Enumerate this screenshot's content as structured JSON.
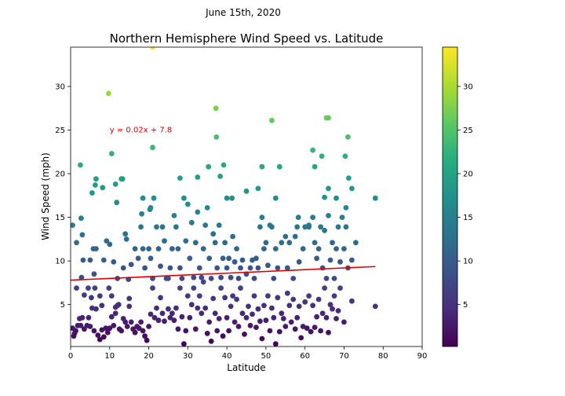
{
  "figure": {
    "suptitle": "June 15th, 2020"
  },
  "chart_data": {
    "type": "scatter",
    "title": "Northern Hemisphere Wind Speed vs. Latitude",
    "xlabel": "Latitude",
    "ylabel": "Wind Speed (mph)",
    "xlim": [
      0,
      90
    ],
    "ylim": [
      0.2,
      34.5
    ],
    "xticks": [
      0,
      10,
      20,
      30,
      40,
      50,
      60,
      70,
      80,
      90
    ],
    "yticks": [
      5,
      10,
      15,
      20,
      25,
      30
    ],
    "colormap": "viridis",
    "colorbar": {
      "range": [
        0.2,
        34.5
      ],
      "ticks": [
        5,
        10,
        15,
        20,
        25,
        30
      ]
    },
    "regression": {
      "slope": 0.02,
      "intercept": 7.8,
      "x_range": [
        0,
        78
      ],
      "color": "#e00000",
      "equation_label": "y = 0.02x + 7.8",
      "label_position": [
        10,
        25
      ]
    },
    "points": [
      [
        0.5,
        14.1
      ],
      [
        1.5,
        12.1
      ],
      [
        2.5,
        21.0
      ],
      [
        2.7,
        14.9
      ],
      [
        3.0,
        13.0
      ],
      [
        3.2,
        10.1
      ],
      [
        5.5,
        17.8
      ],
      [
        6.5,
        19.4
      ],
      [
        6.3,
        18.7
      ],
      [
        8.2,
        18.4
      ],
      [
        9.7,
        29.2
      ],
      [
        10.5,
        22.3
      ],
      [
        11.5,
        18.8
      ],
      [
        11.8,
        16.7
      ],
      [
        13.3,
        19.4
      ],
      [
        13.0,
        19.4
      ],
      [
        18.5,
        17.2
      ],
      [
        20.3,
        15.9
      ],
      [
        20.5,
        16.1
      ],
      [
        21.0,
        23.0
      ],
      [
        21.3,
        17.2
      ],
      [
        21.0,
        34.5
      ],
      [
        28.0,
        19.5
      ],
      [
        32.5,
        19.6
      ],
      [
        35.3,
        20.8
      ],
      [
        37.2,
        27.5
      ],
      [
        37.3,
        24.2
      ],
      [
        38.3,
        19.7
      ],
      [
        39.2,
        21.0
      ],
      [
        40.0,
        17.2
      ],
      [
        41.3,
        17.2
      ],
      [
        45.0,
        18.0
      ],
      [
        48.0,
        18.3
      ],
      [
        49.0,
        20.8
      ],
      [
        51.5,
        26.1
      ],
      [
        52.5,
        17.2
      ],
      [
        53.5,
        20.8
      ],
      [
        58.3,
        15.0
      ],
      [
        61.0,
        14.1
      ],
      [
        62.0,
        22.7
      ],
      [
        62.5,
        20.8
      ],
      [
        64.3,
        22.0
      ],
      [
        65.0,
        17.3
      ],
      [
        65.5,
        26.4
      ],
      [
        66.0,
        26.4
      ],
      [
        66.0,
        18.3
      ],
      [
        68.0,
        17.2
      ],
      [
        70.3,
        22.0
      ],
      [
        70.5,
        16.1
      ],
      [
        71.0,
        24.2
      ],
      [
        71.2,
        19.5
      ],
      [
        72.0,
        18.3
      ],
      [
        78.0,
        17.2
      ],
      [
        1.5,
        6.9
      ],
      [
        2.8,
        8.1
      ],
      [
        3.5,
        6.1
      ],
      [
        4.5,
        6.9
      ],
      [
        5.0,
        10.1
      ],
      [
        5.3,
        5.8
      ],
      [
        5.8,
        11.4
      ],
      [
        6.0,
        8.5
      ],
      [
        6.5,
        11.4
      ],
      [
        6.2,
        6.9
      ],
      [
        7.5,
        6.0
      ],
      [
        8.0,
        4.9
      ],
      [
        8.5,
        10.1
      ],
      [
        9.2,
        12.3
      ],
      [
        9.8,
        6.9
      ],
      [
        10.0,
        11.9
      ],
      [
        10.5,
        6.0
      ],
      [
        11.0,
        9.9
      ],
      [
        11.5,
        4.7
      ],
      [
        12.0,
        8.0
      ],
      [
        12.3,
        5.0
      ],
      [
        13.5,
        9.2
      ],
      [
        14.0,
        13.1
      ],
      [
        14.3,
        12.5
      ],
      [
        14.8,
        7.9
      ],
      [
        15.0,
        5.7
      ],
      [
        15.5,
        9.6
      ],
      [
        16.5,
        11.4
      ],
      [
        17.3,
        10.3
      ],
      [
        18.0,
        13.9
      ],
      [
        18.2,
        15.4
      ],
      [
        18.5,
        11.4
      ],
      [
        19.0,
        9.2
      ],
      [
        20.0,
        11.4
      ],
      [
        20.5,
        10.3
      ],
      [
        21.0,
        8.0
      ],
      [
        22.0,
        13.9
      ],
      [
        22.5,
        11.4
      ],
      [
        23.0,
        9.4
      ],
      [
        23.5,
        13.9
      ],
      [
        24.0,
        12.3
      ],
      [
        25.0,
        8.0
      ],
      [
        25.5,
        9.2
      ],
      [
        26.0,
        11.4
      ],
      [
        26.5,
        15.2
      ],
      [
        27.0,
        13.9
      ],
      [
        27.5,
        11.4
      ],
      [
        28.0,
        9.2
      ],
      [
        28.5,
        8.0
      ],
      [
        29.0,
        17.2
      ],
      [
        29.5,
        12.3
      ],
      [
        30.0,
        16.5
      ],
      [
        30.5,
        10.3
      ],
      [
        31.0,
        14.4
      ],
      [
        31.5,
        8.1
      ],
      [
        32.0,
        12.1
      ],
      [
        32.5,
        15.6
      ],
      [
        33.0,
        9.2
      ],
      [
        33.5,
        8.1
      ],
      [
        34.0,
        11.4
      ],
      [
        34.5,
        14.1
      ],
      [
        35.0,
        16.1
      ],
      [
        35.5,
        10.3
      ],
      [
        36.0,
        8.0
      ],
      [
        36.5,
        13.1
      ],
      [
        37.0,
        12.1
      ],
      [
        37.5,
        9.2
      ],
      [
        38.0,
        14.1
      ],
      [
        38.5,
        8.1
      ],
      [
        39.0,
        10.3
      ],
      [
        39.5,
        12.1
      ],
      [
        40.0,
        9.2
      ],
      [
        40.5,
        10.3
      ],
      [
        41.0,
        8.1
      ],
      [
        41.5,
        12.8
      ],
      [
        42.0,
        9.9
      ],
      [
        42.5,
        11.4
      ],
      [
        43.0,
        8.0
      ],
      [
        43.5,
        9.2
      ],
      [
        44.0,
        10.1
      ],
      [
        45.0,
        8.5
      ],
      [
        46.0,
        9.2
      ],
      [
        46.5,
        10.1
      ],
      [
        47.0,
        8.0
      ],
      [
        47.5,
        10.3
      ],
      [
        48.0,
        9.2
      ],
      [
        48.5,
        13.9
      ],
      [
        49.0,
        15.0
      ],
      [
        49.5,
        11.4
      ],
      [
        50.0,
        12.1
      ],
      [
        50.5,
        9.5
      ],
      [
        51.0,
        14.1
      ],
      [
        51.5,
        13.9
      ],
      [
        52.0,
        8.0
      ],
      [
        52.5,
        11.4
      ],
      [
        53.0,
        9.2
      ],
      [
        54.0,
        12.1
      ],
      [
        55.0,
        12.8
      ],
      [
        55.5,
        9.2
      ],
      [
        56.0,
        12.1
      ],
      [
        57.0,
        8.0
      ],
      [
        57.5,
        12.8
      ],
      [
        58.0,
        13.9
      ],
      [
        58.5,
        9.9
      ],
      [
        59.5,
        11.4
      ],
      [
        60.0,
        13.9
      ],
      [
        61.0,
        13.9
      ],
      [
        62.0,
        15.0
      ],
      [
        62.5,
        12.1
      ],
      [
        63.0,
        10.3
      ],
      [
        63.5,
        11.4
      ],
      [
        64.0,
        13.9
      ],
      [
        64.5,
        9.2
      ],
      [
        65.0,
        13.5
      ],
      [
        65.5,
        8.0
      ],
      [
        66.0,
        15.2
      ],
      [
        66.5,
        10.1
      ],
      [
        67.0,
        12.1
      ],
      [
        67.5,
        8.0
      ],
      [
        68.0,
        11.4
      ],
      [
        68.5,
        13.9
      ],
      [
        69.0,
        9.9
      ],
      [
        69.5,
        15.0
      ],
      [
        70.0,
        11.4
      ],
      [
        70.5,
        13.9
      ],
      [
        71.0,
        9.2
      ],
      [
        72.0,
        10.1
      ],
      [
        73.0,
        12.1
      ],
      [
        0.5,
        2.3
      ],
      [
        0.8,
        1.4
      ],
      [
        1.0,
        1.7
      ],
      [
        1.3,
        2.0
      ],
      [
        1.8,
        2.6
      ],
      [
        2.3,
        3.4
      ],
      [
        2.6,
        2.6
      ],
      [
        3.0,
        3.5
      ],
      [
        3.5,
        2.2
      ],
      [
        4.2,
        2.6
      ],
      [
        4.6,
        3.5
      ],
      [
        5.0,
        2.5
      ],
      [
        5.5,
        4.6
      ],
      [
        6.0,
        2.0
      ],
      [
        6.5,
        4.5
      ],
      [
        7.0,
        1.5
      ],
      [
        7.5,
        1.0
      ],
      [
        8.0,
        2.1
      ],
      [
        8.5,
        1.3
      ],
      [
        9.0,
        2.3
      ],
      [
        9.5,
        1.8
      ],
      [
        10.0,
        2.3
      ],
      [
        10.5,
        3.6
      ],
      [
        11.0,
        2.6
      ],
      [
        11.5,
        4.0
      ],
      [
        12.0,
        4.9
      ],
      [
        12.5,
        2.2
      ],
      [
        13.0,
        2.0
      ],
      [
        13.5,
        3.4
      ],
      [
        14.0,
        3.0
      ],
      [
        14.5,
        2.5
      ],
      [
        15.0,
        4.8
      ],
      [
        15.5,
        3.0
      ],
      [
        16.0,
        2.2
      ],
      [
        16.5,
        1.8
      ],
      [
        17.0,
        2.5
      ],
      [
        17.5,
        2.3
      ],
      [
        18.0,
        3.0
      ],
      [
        18.5,
        2.0
      ],
      [
        19.0,
        1.4
      ],
      [
        19.5,
        0.9
      ],
      [
        20.0,
        2.5
      ],
      [
        20.5,
        3.9
      ],
      [
        21.0,
        6.9
      ],
      [
        21.5,
        3.5
      ],
      [
        22.0,
        4.6
      ],
      [
        22.5,
        3.2
      ],
      [
        23.0,
        5.8
      ],
      [
        23.5,
        4.0
      ],
      [
        24.0,
        3.1
      ],
      [
        24.5,
        8.0
      ],
      [
        25.0,
        4.5
      ],
      [
        25.5,
        3.5
      ],
      [
        26.0,
        4.0
      ],
      [
        26.5,
        3.2
      ],
      [
        27.0,
        4.6
      ],
      [
        27.5,
        2.2
      ],
      [
        28.0,
        6.9
      ],
      [
        28.5,
        3.6
      ],
      [
        29.0,
        0.5
      ],
      [
        29.5,
        2.0
      ],
      [
        30.0,
        6.0
      ],
      [
        30.5,
        3.5
      ],
      [
        31.0,
        5.0
      ],
      [
        31.5,
        6.9
      ],
      [
        32.0,
        2.2
      ],
      [
        32.5,
        4.6
      ],
      [
        33.0,
        6.0
      ],
      [
        33.5,
        4.0
      ],
      [
        34.0,
        7.6
      ],
      [
        34.5,
        4.6
      ],
      [
        35.0,
        1.7
      ],
      [
        35.5,
        3.0
      ],
      [
        36.0,
        0.8
      ],
      [
        36.5,
        5.7
      ],
      [
        37.0,
        4.0
      ],
      [
        37.5,
        2.0
      ],
      [
        38.0,
        3.4
      ],
      [
        38.5,
        6.9
      ],
      [
        39.0,
        1.4
      ],
      [
        39.5,
        5.8
      ],
      [
        40.0,
        3.5
      ],
      [
        40.5,
        2.0
      ],
      [
        41.0,
        4.8
      ],
      [
        41.5,
        6.0
      ],
      [
        42.0,
        3.0
      ],
      [
        42.5,
        5.6
      ],
      [
        43.0,
        2.5
      ],
      [
        43.5,
        6.9
      ],
      [
        44.0,
        4.0
      ],
      [
        44.5,
        1.6
      ],
      [
        45.0,
        3.5
      ],
      [
        45.5,
        4.8
      ],
      [
        46.0,
        2.6
      ],
      [
        46.5,
        3.9
      ],
      [
        47.0,
        6.0
      ],
      [
        47.5,
        2.4
      ],
      [
        48.0,
        4.5
      ],
      [
        48.5,
        3.1
      ],
      [
        49.0,
        1.1
      ],
      [
        49.5,
        4.9
      ],
      [
        50.0,
        3.2
      ],
      [
        50.5,
        6.0
      ],
      [
        51.0,
        2.0
      ],
      [
        51.5,
        4.6
      ],
      [
        52.0,
        3.5
      ],
      [
        52.5,
        0.5
      ],
      [
        53.0,
        5.8
      ],
      [
        53.5,
        1.9
      ],
      [
        54.0,
        4.0
      ],
      [
        54.5,
        3.4
      ],
      [
        55.0,
        2.5
      ],
      [
        55.5,
        6.3
      ],
      [
        56.0,
        4.9
      ],
      [
        56.5,
        3.0
      ],
      [
        57.0,
        5.6
      ],
      [
        57.5,
        2.2
      ],
      [
        58.0,
        3.5
      ],
      [
        58.5,
        4.8
      ],
      [
        59.0,
        1.2
      ],
      [
        59.5,
        2.5
      ],
      [
        60.0,
        5.3
      ],
      [
        60.5,
        2.3
      ],
      [
        61.0,
        6.0
      ],
      [
        61.5,
        1.9
      ],
      [
        62.0,
        4.9
      ],
      [
        62.5,
        2.4
      ],
      [
        63.0,
        3.6
      ],
      [
        63.5,
        5.6
      ],
      [
        64.0,
        2.0
      ],
      [
        64.5,
        4.0
      ],
      [
        65.0,
        6.9
      ],
      [
        65.5,
        3.5
      ],
      [
        66.0,
        1.8
      ],
      [
        66.5,
        5.0
      ],
      [
        67.0,
        4.5
      ],
      [
        67.5,
        6.0
      ],
      [
        68.0,
        3.4
      ],
      [
        68.5,
        4.3
      ],
      [
        69.0,
        6.9
      ],
      [
        70.0,
        3.0
      ],
      [
        72.0,
        5.4
      ],
      [
        78.0,
        4.8
      ]
    ]
  }
}
